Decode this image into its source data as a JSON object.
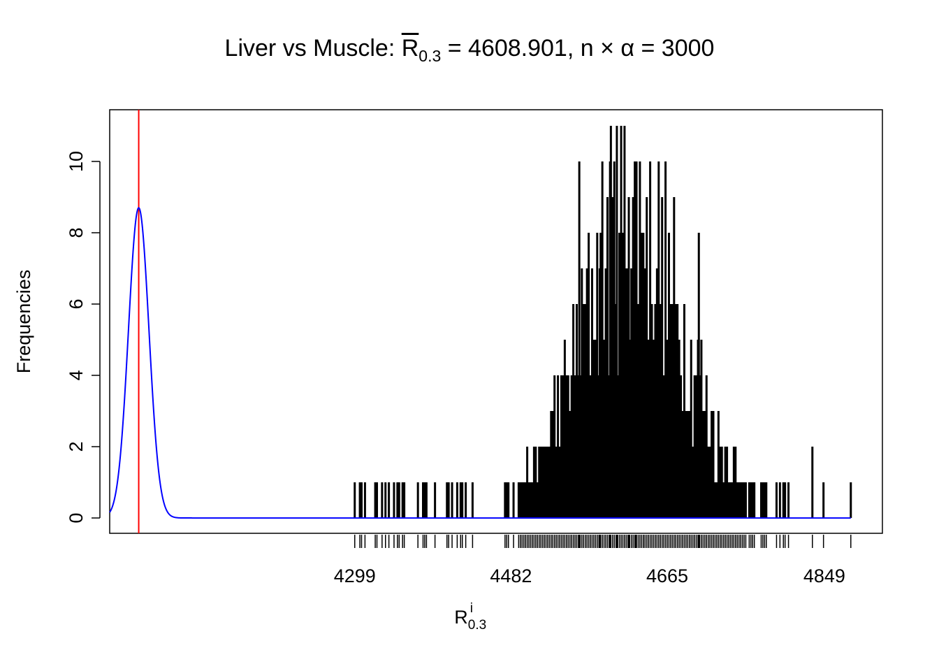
{
  "chart_data": {
    "type": "histogram",
    "title": {
      "prefix": "Liver vs Muscle: ",
      "stat_symbol": "R",
      "stat_subscript": "0.3",
      "stat_value_text": " = 4608.901, n",
      "times": " × ",
      "alpha": "α",
      "suffix": " = 3000"
    },
    "xlabel": {
      "symbol": "R",
      "superscript": "i",
      "subscript": "0.3"
    },
    "ylabel": "Frequencies",
    "xlim": [
      4012,
      4917
    ],
    "ylim": [
      -0.43,
      11.45
    ],
    "y_ticks": [
      "0",
      "2",
      "4",
      "6",
      "8",
      "10"
    ],
    "y_tick_values": [
      0,
      2,
      4,
      6,
      8,
      10
    ],
    "x_tick_labels": [
      "4299",
      "4482",
      "4665",
      "4849"
    ],
    "x_tick_values": [
      4299,
      4482,
      4665,
      4849
    ],
    "observed_mean": 4608.901,
    "expected_value": 3000,
    "spikes": {
      "approx_distribution": "normal",
      "approx_center": 4624,
      "approx_sd": 62,
      "approx_peak_frequency": 11,
      "approx_max_frequency_10_at": [
        4562,
        4598
      ],
      "range": [
        4299,
        4880
      ]
    },
    "reference_line": {
      "x": 4046,
      "color": "#ff0000"
    },
    "curve": {
      "type": "normal density (scaled)",
      "center": 4046,
      "peak_frequency": 8.7,
      "color": "#0000ff"
    },
    "colors": {
      "spikes": "#000000",
      "curve": "#0000ff",
      "reference": "#ff0000",
      "axis": "#000000"
    }
  }
}
